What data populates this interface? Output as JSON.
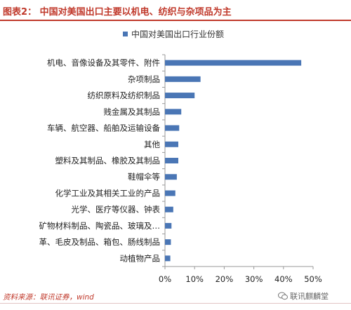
{
  "header": {
    "title": "图表2：  中国对美国出口主要以机电、纺织与杂项品为主"
  },
  "footer": {
    "source": "资料来源：联讯证券，wind",
    "watermark": "联讯麒麟堂"
  },
  "colors": {
    "bar": "#4a76b5",
    "accent": "#c0392b"
  },
  "chart_data": {
    "type": "bar",
    "orientation": "horizontal",
    "legend_position": "top",
    "series": [
      {
        "name": "中国对美国出口行业份额",
        "values": [
          46,
          12,
          10,
          5.5,
          4.8,
          4.5,
          4.5,
          4.0,
          3.5,
          2.8,
          2.2,
          2.0,
          1.8
        ]
      }
    ],
    "categories": [
      "机电、音像设备及其零件、附件",
      "杂项制品",
      "纺织原料及纺织制品",
      "贱金属及其制品",
      "车辆、航空器、船舶及运输设备",
      "其他",
      "塑料及其制品、橡胶及其制品",
      "鞋帽伞等",
      "化学工业及其相关工业的产品",
      "光学、医疗等仪器、钟表",
      "矿物材料制品、陶瓷品、玻璃及…",
      "革、毛皮及制品、箱包、肠线制品",
      "动植物产品"
    ],
    "xlim": [
      0,
      50
    ],
    "xticks": [
      "0%",
      "10%",
      "20%",
      "30%",
      "40%",
      "50%"
    ],
    "grid": false
  }
}
